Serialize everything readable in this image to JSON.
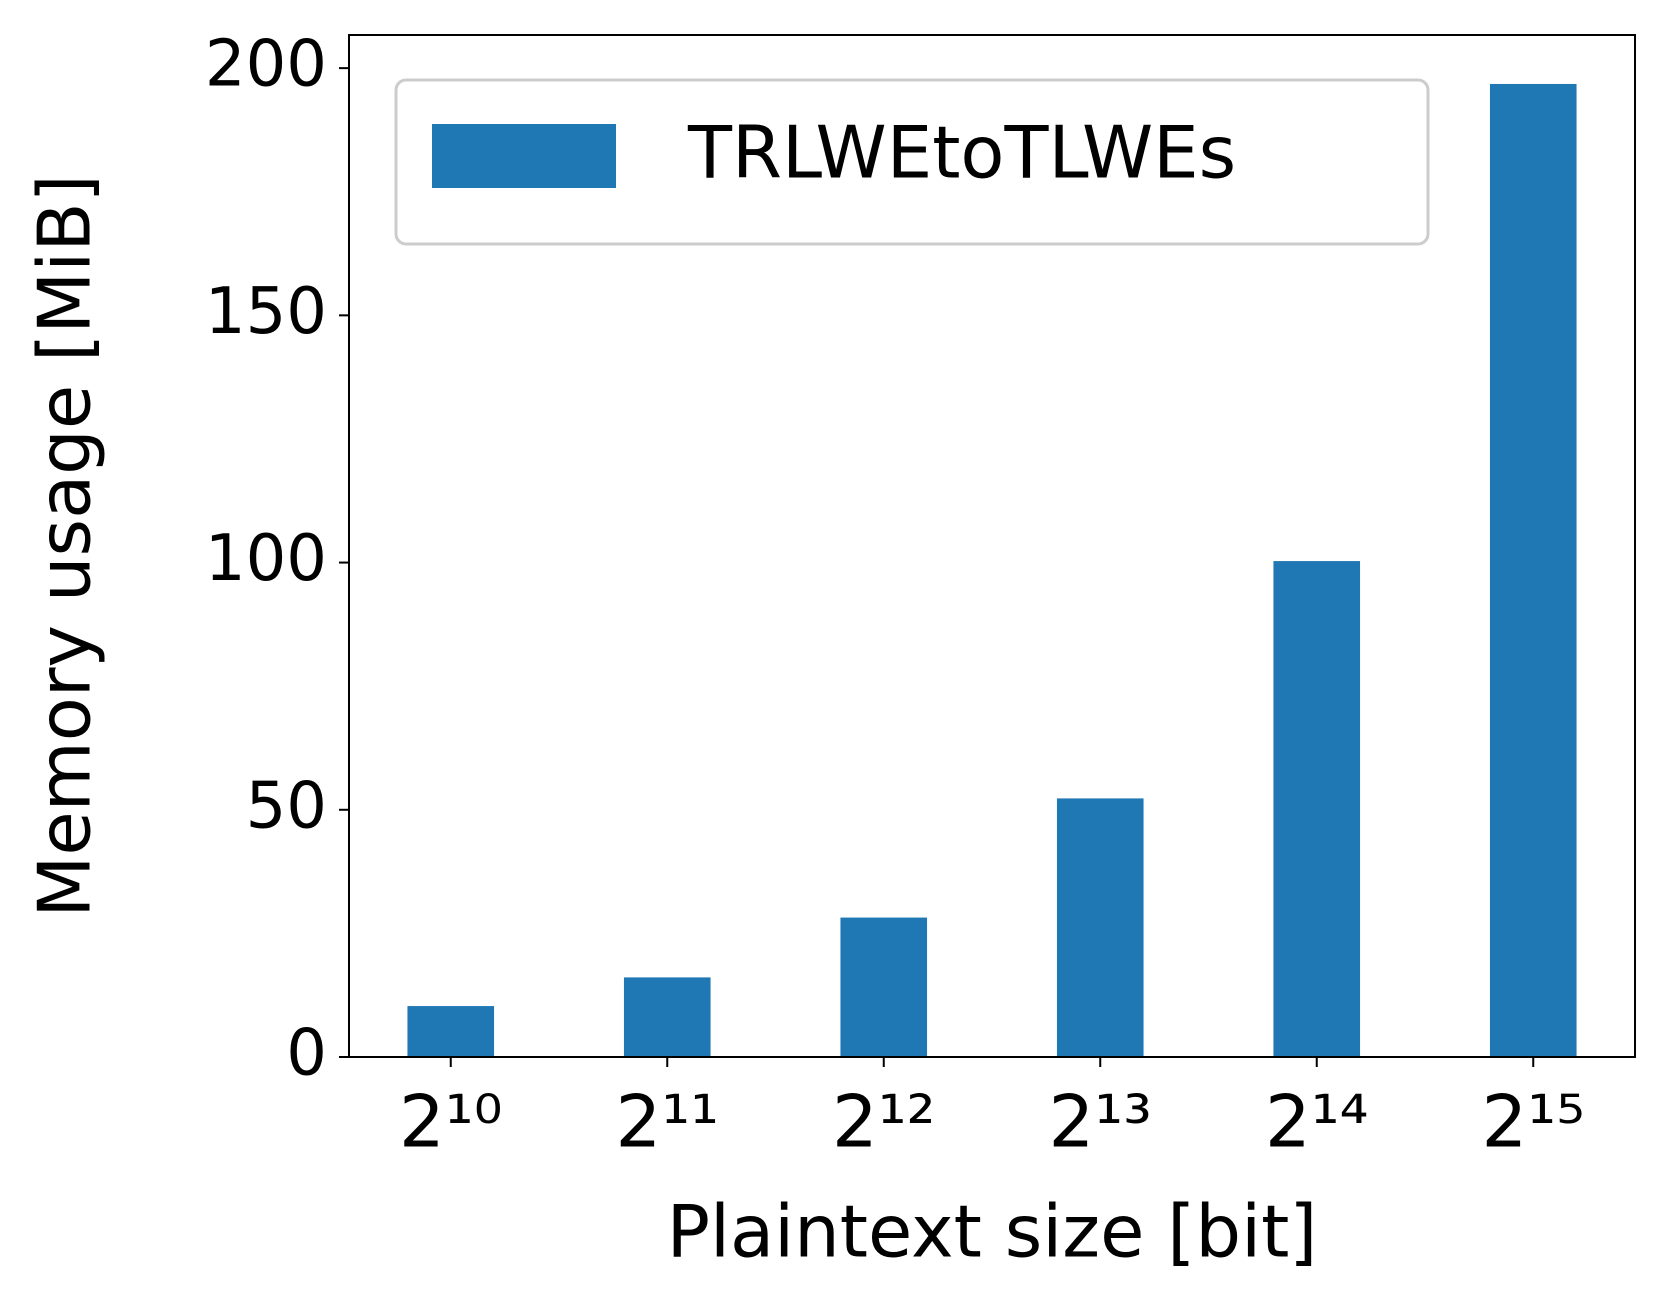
{
  "chart_data": {
    "type": "bar",
    "x_label": "Plaintext size [bit]",
    "y_label": "Memory usage [MiB]",
    "categories": [
      "2¹⁰",
      "2¹¹",
      "2¹²",
      "2¹³",
      "2¹⁴",
      "2¹⁵"
    ],
    "series": [
      {
        "name": "TRLWEtoTLWEs",
        "color": "#1f77b4",
        "values": [
          10.3,
          16.1,
          28.2,
          52.3,
          100.3,
          196.8
        ]
      }
    ],
    "ylim": [
      0,
      206.7
    ],
    "yticks": [
      0,
      50,
      100,
      150,
      200
    ],
    "grid": false,
    "legend_position": "upper-left"
  }
}
